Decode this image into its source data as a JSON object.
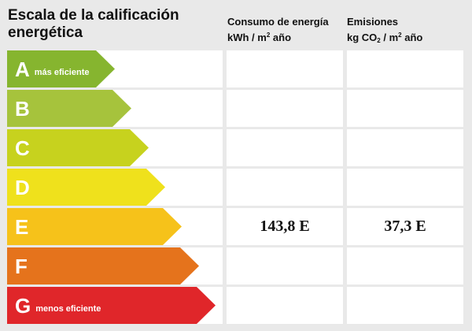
{
  "title": "Escala de la calificación energética",
  "columns": {
    "energy": {
      "line1": "Consumo de energía",
      "unit_pre": "kWh / m",
      "unit_sup": "2",
      "unit_post": " año"
    },
    "emissions": {
      "line1": "Emisiones",
      "unit_pre": "kg CO",
      "unit_sub": "2",
      "unit_post": " / m",
      "unit_sup": "2",
      "unit_post2": " año"
    }
  },
  "rows": [
    {
      "letter": "A",
      "note": "más eficiente",
      "color": "#86b52f",
      "energy": "",
      "emissions": ""
    },
    {
      "letter": "B",
      "note": "",
      "color": "#a6c33c",
      "energy": "",
      "emissions": ""
    },
    {
      "letter": "C",
      "note": "",
      "color": "#c7d21e",
      "energy": "",
      "emissions": ""
    },
    {
      "letter": "D",
      "note": "",
      "color": "#efe11c",
      "energy": "",
      "emissions": ""
    },
    {
      "letter": "E",
      "note": "",
      "color": "#f6c21a",
      "energy": "143,8 E",
      "emissions": "37,3 E"
    },
    {
      "letter": "F",
      "note": "",
      "color": "#e5731c",
      "energy": "",
      "emissions": ""
    },
    {
      "letter": "G",
      "note": "menos eficiente",
      "color": "#e0262a",
      "energy": "",
      "emissions": ""
    }
  ]
}
